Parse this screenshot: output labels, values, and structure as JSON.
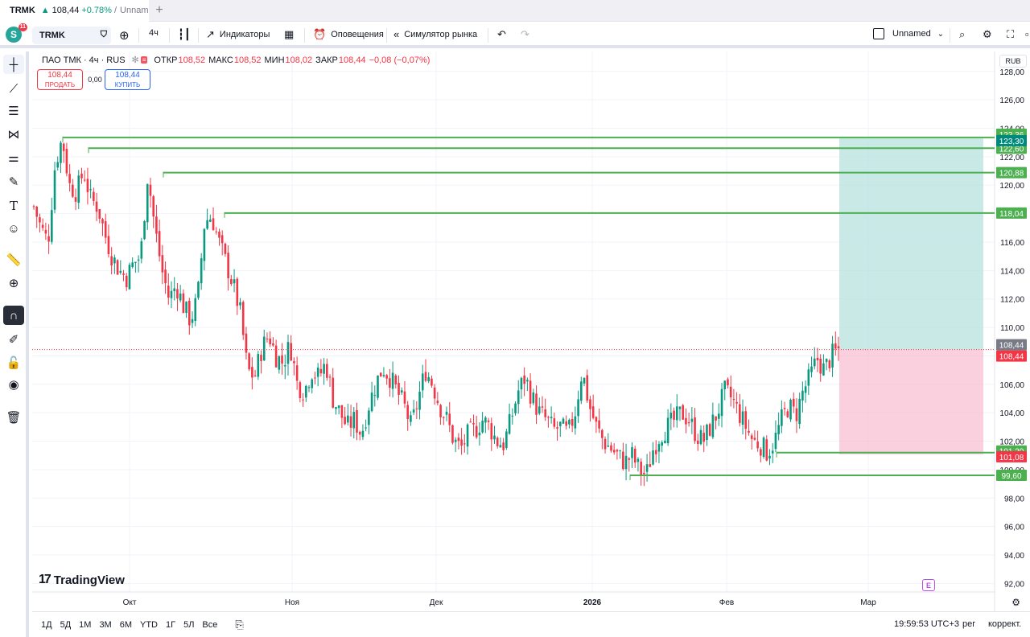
{
  "browser": {
    "tab_symbol": "TRMK",
    "tab_arrow": "▲",
    "tab_price": "108,44",
    "tab_change": "+0.78%",
    "tab_sep": "/",
    "tab_layout": "Unname",
    "new_tab": "+"
  },
  "toolbar": {
    "avatar_letter": "S",
    "avatar_badge": "11",
    "symbol": "TRMK",
    "interval": "4ч",
    "indicators": "Индикаторы",
    "alerts": "Оповещения",
    "replay": "Симулятор рынка",
    "layout_name": "Unnamed"
  },
  "legend": {
    "name": "ПАО ТМК · 4ч · RUS",
    "open_label": "ОТКР",
    "open": "108,52",
    "high_label": "МАКС",
    "high": "108,52",
    "low_label": "МИН",
    "low": "108,02",
    "close_label": "ЗАКР",
    "close": "108,44",
    "change": "−0,08 (−0,07%)"
  },
  "trade": {
    "sell_price": "108,44",
    "sell_label": "ПРОДАТЬ",
    "spread": "0,00",
    "buy_price": "108,44",
    "buy_label": "КУПИТЬ"
  },
  "currency": "RUB",
  "branding": "TradingView",
  "chart_data": {
    "type": "candlestick",
    "symbol": "TRMK",
    "title": "ПАО ТМК · 4ч · RUS",
    "ylim": [
      91.4,
      129.4
    ],
    "y_ticks": [
      "92,00",
      "94,00",
      "96,00",
      "98,00",
      "100,00",
      "102,00",
      "104,00",
      "106,00",
      "108,00",
      "110,00",
      "112,00",
      "114,00",
      "116,00",
      "118,00",
      "120,00",
      "122,00",
      "124,00",
      "126,00",
      "128,00"
    ],
    "x_ticks": [
      "Окт",
      "Ноя",
      "Дек",
      "2026",
      "Фев",
      "Мар"
    ],
    "last_price": 108.44,
    "levels": [
      {
        "price": 123.36,
        "label": "123,36",
        "color": "#4caf50"
      },
      {
        "price": 122.6,
        "label": "122,60",
        "color": "#4caf50"
      },
      {
        "price": 120.88,
        "label": "120,88",
        "color": "#4caf50"
      },
      {
        "price": 118.04,
        "label": "118,04",
        "color": "#4caf50"
      },
      {
        "price": 101.2,
        "label": "101,20",
        "color": "#4caf50"
      },
      {
        "price": 99.6,
        "label": "99,60",
        "color": "#4caf50"
      }
    ],
    "position": {
      "type": "long",
      "entry": 108.44,
      "target": 123.3,
      "stop": 101.08,
      "target_label": "123,30",
      "stop_label": "101,08",
      "entry_label": "108,44",
      "profit_color": "#b2dfdb",
      "loss_color": "#f8bbd0"
    },
    "price_path": [
      118.5,
      117.0,
      116.0,
      121.5,
      123.3,
      120.0,
      119.5,
      121.0,
      119.0,
      118.5,
      116.5,
      115.0,
      114.0,
      113.5,
      114.5,
      115.0,
      120.8,
      117.0,
      114.0,
      112.0,
      113.0,
      111.5,
      110.5,
      112.0,
      117.5,
      117.8,
      116.0,
      114.5,
      113.0,
      111.0,
      107.0,
      106.5,
      108.5,
      109.5,
      108.0,
      107.5,
      108.8,
      106.0,
      105.5,
      107.0,
      106.5,
      107.5,
      105.0,
      104.0,
      103.0,
      103.5,
      102.5,
      104.5,
      106.0,
      107.2,
      106.5,
      105.5,
      104.5,
      103.0,
      105.0,
      107.0,
      106.0,
      104.5,
      103.5,
      102.0,
      101.5,
      102.5,
      102.8,
      103.5,
      103.0,
      102.0,
      101.8,
      103.5,
      105.5,
      106.5,
      105.0,
      104.0,
      103.5,
      102.8,
      103.0,
      102.5,
      104.0,
      107.0,
      104.5,
      103.0,
      102.0,
      101.5,
      101.0,
      100.5,
      101.0,
      100.0,
      99.6,
      101.5,
      102.5,
      103.0,
      103.5,
      104.0,
      103.5,
      102.5,
      102.0,
      103.0,
      104.0,
      105.5,
      105.0,
      104.0,
      103.0,
      102.0,
      101.8,
      101.2,
      102.0,
      103.5,
      104.5,
      103.8,
      105.5,
      106.5,
      107.8,
      107.0,
      108.0,
      108.44
    ],
    "colors": {
      "up": "#089981",
      "down": "#f23645",
      "level": "#4caf50"
    }
  },
  "bottom": {
    "ranges": [
      "1Д",
      "5Д",
      "1М",
      "3М",
      "6М",
      "YTD",
      "1Г",
      "5Л",
      "Все"
    ],
    "time": "19:59:53 UTC+3",
    "reg": "рег",
    "adj": "коррект."
  }
}
